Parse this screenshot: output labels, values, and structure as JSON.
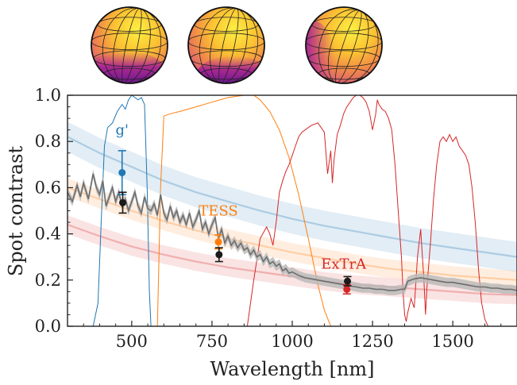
{
  "chart_data": {
    "type": "line",
    "xlabel": "Wavelength [nm]",
    "ylabel": "Spot contrast",
    "xlim": [
      300,
      1700
    ],
    "ylim": [
      0.0,
      1.0
    ],
    "x_ticks": [
      "500",
      "750",
      "1000",
      "1250",
      "1500"
    ],
    "x_tick_values": [
      500,
      750,
      1000,
      1250,
      1500
    ],
    "y_ticks": [
      "0.0",
      "0.2",
      "0.4",
      "0.6",
      "0.8",
      "1.0"
    ],
    "y_tick_values": [
      0.0,
      0.2,
      0.4,
      0.6,
      0.8,
      1.0
    ],
    "colors": {
      "blue": "#1f77b4",
      "orange": "#ff7f0e",
      "red": "#d62728",
      "model": "#6d6d6d",
      "model_band": "#b8b8b8",
      "black": "#1a1a1a"
    },
    "band_labels": [
      {
        "text": "g'",
        "x": 470,
        "y": 0.83,
        "color": "#1f77b4"
      },
      {
        "text": "TESS",
        "x": 770,
        "y": 0.48,
        "color": "#ff7f0e"
      },
      {
        "text": "ExTrA",
        "x": 1160,
        "y": 0.25,
        "color": "#d62728"
      }
    ],
    "model_curves": [
      {
        "color": "#1f77b4",
        "x": [
          300,
          400,
          500,
          600,
          700,
          800,
          900,
          1000,
          1100,
          1200,
          1300,
          1400,
          1500,
          1600,
          1700
        ],
        "y": [
          0.82,
          0.75,
          0.69,
          0.63,
          0.58,
          0.54,
          0.5,
          0.465,
          0.435,
          0.41,
          0.385,
          0.36,
          0.34,
          0.32,
          0.3
        ],
        "band_halfwidth": 0.065
      },
      {
        "color": "#ff7f0e",
        "x": [
          300,
          400,
          500,
          600,
          700,
          800,
          900,
          1000,
          1100,
          1200,
          1300,
          1400,
          1500,
          1600,
          1700
        ],
        "y": [
          0.6,
          0.55,
          0.5,
          0.455,
          0.415,
          0.38,
          0.35,
          0.32,
          0.295,
          0.27,
          0.25,
          0.235,
          0.22,
          0.21,
          0.2
        ],
        "band_halfwidth": 0.04
      },
      {
        "color": "#d62728",
        "x": [
          300,
          400,
          500,
          600,
          700,
          800,
          900,
          1000,
          1100,
          1200,
          1300,
          1400,
          1500,
          1600,
          1700
        ],
        "y": [
          0.44,
          0.39,
          0.345,
          0.31,
          0.28,
          0.255,
          0.235,
          0.215,
          0.195,
          0.18,
          0.17,
          0.16,
          0.15,
          0.14,
          0.135
        ],
        "band_halfwidth": 0.04
      }
    ],
    "filters": [
      {
        "name": "g'",
        "color": "#1f77b4",
        "x": [
          380,
          395,
          405,
          415,
          425,
          440,
          455,
          470,
          480,
          490,
          500,
          510,
          520,
          530,
          540,
          548,
          555,
          560
        ],
        "y": [
          0.0,
          0.1,
          0.45,
          0.78,
          0.86,
          0.88,
          0.93,
          0.96,
          0.94,
          0.98,
          1.0,
          0.99,
          0.98,
          0.99,
          0.96,
          0.6,
          0.15,
          0.0
        ]
      },
      {
        "name": "TESS",
        "color": "#ff7f0e",
        "x": [
          580,
          590,
          600,
          620,
          650,
          700,
          750,
          800,
          850,
          880,
          900,
          930,
          960,
          990,
          1020,
          1050,
          1080,
          1100,
          1120
        ],
        "y": [
          0.0,
          0.6,
          0.91,
          0.92,
          0.93,
          0.95,
          0.97,
          0.99,
          1.0,
          1.0,
          0.98,
          0.93,
          0.85,
          0.73,
          0.57,
          0.38,
          0.18,
          0.07,
          0.0
        ]
      },
      {
        "name": "ExTrA",
        "color": "#d62728",
        "x": [
          860,
          880,
          900,
          920,
          930,
          940,
          950,
          960,
          970,
          980,
          990,
          1000,
          1010,
          1020,
          1030,
          1050,
          1060,
          1080,
          1100,
          1110,
          1120,
          1125,
          1130,
          1140,
          1150,
          1160,
          1170,
          1180,
          1190,
          1200,
          1210,
          1220,
          1230,
          1240,
          1250,
          1260,
          1265,
          1270,
          1280,
          1290,
          1300,
          1310,
          1320,
          1330,
          1340,
          1345,
          1350,
          1355,
          1360,
          1370,
          1380,
          1390,
          1400,
          1410,
          1415,
          1420,
          1430,
          1440,
          1450,
          1460,
          1470,
          1480,
          1490,
          1500,
          1510,
          1520,
          1530,
          1540,
          1550,
          1560,
          1570,
          1580,
          1590,
          1600,
          1610
        ],
        "y": [
          0.0,
          0.2,
          0.38,
          0.43,
          0.4,
          0.35,
          0.45,
          0.58,
          0.63,
          0.67,
          0.7,
          0.74,
          0.78,
          0.82,
          0.84,
          0.86,
          0.87,
          0.88,
          0.84,
          0.66,
          0.76,
          0.62,
          0.72,
          0.83,
          0.87,
          0.92,
          0.95,
          0.97,
          0.99,
          1.0,
          1.0,
          0.99,
          0.97,
          0.93,
          0.85,
          0.92,
          0.98,
          0.96,
          0.94,
          0.93,
          0.9,
          0.85,
          0.7,
          0.5,
          0.3,
          0.15,
          0.05,
          0.02,
          0.06,
          0.12,
          0.08,
          0.3,
          0.42,
          0.2,
          0.05,
          0.18,
          0.35,
          0.55,
          0.7,
          0.8,
          0.82,
          0.8,
          0.83,
          0.8,
          0.82,
          0.78,
          0.76,
          0.74,
          0.7,
          0.6,
          0.45,
          0.25,
          0.1,
          0.03,
          0.0
        ]
      }
    ],
    "model_spectrum": {
      "color": "#6d6d6d",
      "band_halfwidth": 0.02,
      "x": [
        300,
        315,
        330,
        340,
        350,
        365,
        380,
        390,
        400,
        410,
        420,
        430,
        440,
        450,
        460,
        470,
        480,
        490,
        500,
        510,
        520,
        530,
        540,
        550,
        560,
        570,
        580,
        590,
        600,
        610,
        620,
        630,
        640,
        650,
        660,
        670,
        680,
        690,
        700,
        710,
        720,
        730,
        740,
        750,
        760,
        770,
        780,
        790,
        800,
        810,
        820,
        830,
        840,
        850,
        860,
        870,
        880,
        890,
        900,
        910,
        920,
        930,
        940,
        950,
        960,
        970,
        980,
        990,
        1000,
        1020,
        1040,
        1060,
        1080,
        1100,
        1120,
        1140,
        1160,
        1180,
        1200,
        1220,
        1240,
        1260,
        1280,
        1300,
        1320,
        1340,
        1350,
        1360,
        1380,
        1400,
        1420,
        1440,
        1460,
        1480,
        1500,
        1520,
        1540,
        1560,
        1580,
        1600,
        1620,
        1640,
        1660,
        1680,
        1700
      ],
      "y": [
        0.58,
        0.54,
        0.61,
        0.56,
        0.62,
        0.55,
        0.66,
        0.6,
        0.57,
        0.63,
        0.52,
        0.56,
        0.6,
        0.54,
        0.58,
        0.52,
        0.55,
        0.5,
        0.54,
        0.58,
        0.52,
        0.49,
        0.56,
        0.51,
        0.5,
        0.53,
        0.48,
        0.57,
        0.49,
        0.46,
        0.52,
        0.47,
        0.5,
        0.45,
        0.48,
        0.44,
        0.49,
        0.43,
        0.46,
        0.5,
        0.42,
        0.45,
        0.4,
        0.44,
        0.47,
        0.38,
        0.42,
        0.36,
        0.39,
        0.35,
        0.37,
        0.34,
        0.36,
        0.33,
        0.34,
        0.31,
        0.33,
        0.3,
        0.31,
        0.28,
        0.3,
        0.27,
        0.28,
        0.26,
        0.27,
        0.24,
        0.25,
        0.23,
        0.235,
        0.22,
        0.21,
        0.205,
        0.2,
        0.195,
        0.19,
        0.185,
        0.18,
        0.175,
        0.17,
        0.165,
        0.165,
        0.16,
        0.16,
        0.155,
        0.155,
        0.16,
        0.16,
        0.195,
        0.205,
        0.21,
        0.205,
        0.2,
        0.195,
        0.19,
        0.19,
        0.185,
        0.18,
        0.175,
        0.17,
        0.17,
        0.165,
        0.165,
        0.16,
        0.16,
        0.155
      ]
    },
    "observations": [
      {
        "band": "g'",
        "x": 470,
        "y": 0.665,
        "err": 0.095,
        "color": "#1f77b4"
      },
      {
        "band": "g'",
        "x": 472,
        "y": 0.535,
        "err": 0.045,
        "color": "#1a1a1a"
      },
      {
        "band": "TESS",
        "x": 770,
        "y": 0.365,
        "err": 0.03,
        "color": "#ff7f0e"
      },
      {
        "band": "TESS",
        "x": 772,
        "y": 0.31,
        "err": 0.03,
        "color": "#1a1a1a"
      },
      {
        "band": "ExTrA",
        "x": 1170,
        "y": 0.16,
        "err": 0.02,
        "color": "#d62728"
      },
      {
        "band": "ExTrA",
        "x": 1172,
        "y": 0.195,
        "err": 0.02,
        "color": "#1a1a1a"
      }
    ],
    "spot_maps": [
      {
        "cx": 163,
        "cy": 57,
        "r": 48,
        "spot": "bottom"
      },
      {
        "cx": 285,
        "cy": 57,
        "r": 48,
        "spot": "bottom-right"
      },
      {
        "cx": 433,
        "cy": 57,
        "r": 48,
        "spot": "left"
      }
    ]
  }
}
